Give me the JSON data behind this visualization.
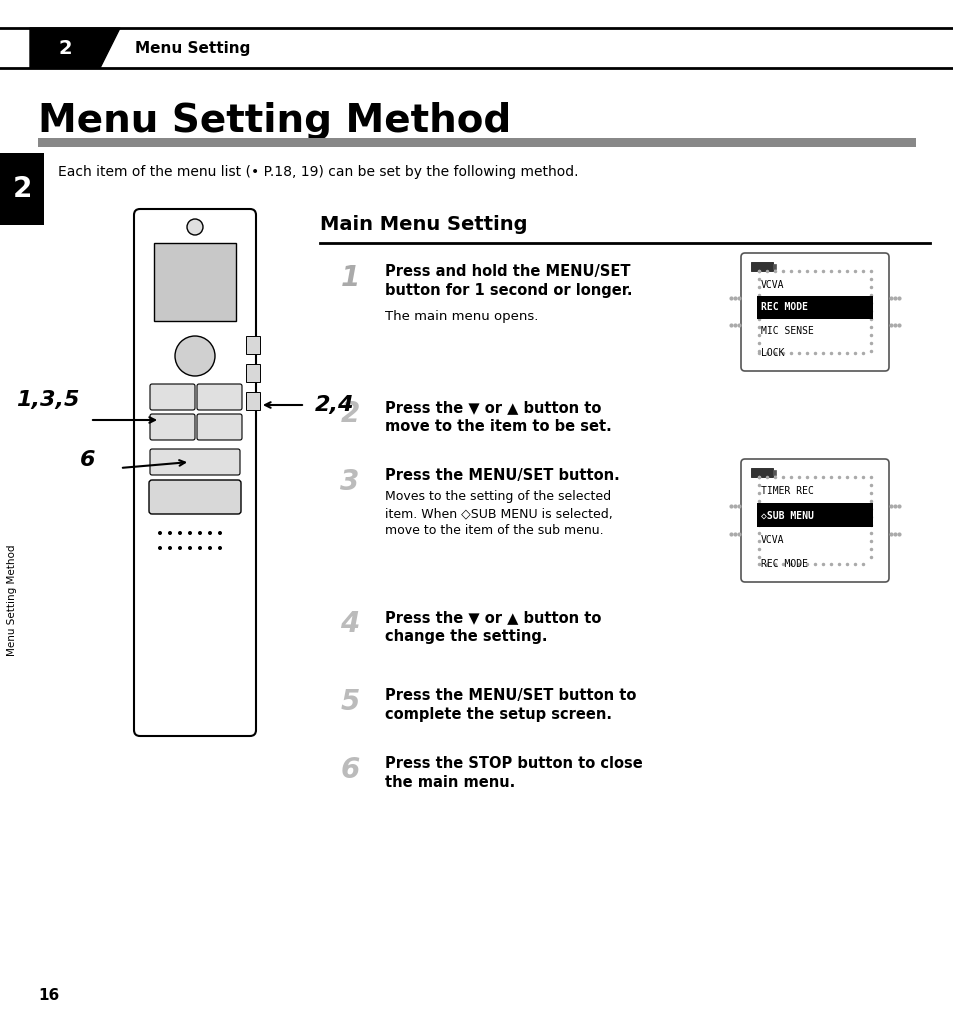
{
  "bg_color": "#ffffff",
  "page_number": "16",
  "chapter_num": "2",
  "chapter_title": "Menu Setting",
  "page_title": "Menu Setting Method",
  "intro_text": "Each item of the menu list (• P.18, 19) can be set by the following method.",
  "sidebar_text": "Menu Setting Method",
  "section_title": "Main Menu Setting",
  "screen1_items": [
    "VCVA",
    "REC MODE",
    "MIC SENSE",
    "LOCK"
  ],
  "screen1_selected": 1,
  "screen2_items": [
    "TIMER REC",
    "◇SUB MENU",
    "VCVA",
    "REC MODE"
  ],
  "screen2_selected": 1,
  "step1_bold": "Press and hold the MENU/SET\nbutton for 1 second or longer.",
  "step1_normal": "The main menu opens.",
  "step2_bold": "Press the ▼ or ▲ button to\nmove to the item to be set.",
  "step3_bold": "Press the MENU/SET button.",
  "step3_normal": "Moves to the setting of the selected\nitem. When ◇SUB MENU is selected,\nmove to the item of the sub menu.",
  "step4_bold": "Press the ▼ or ▲ button to\nchange the setting.",
  "step5_bold": "Press the MENU/SET button to\ncomplete the setup screen.",
  "step6_bold": "Press the STOP button to close\nthe main menu.",
  "label_135": "1,3,5",
  "label_24": "2,4",
  "label_6": "6"
}
